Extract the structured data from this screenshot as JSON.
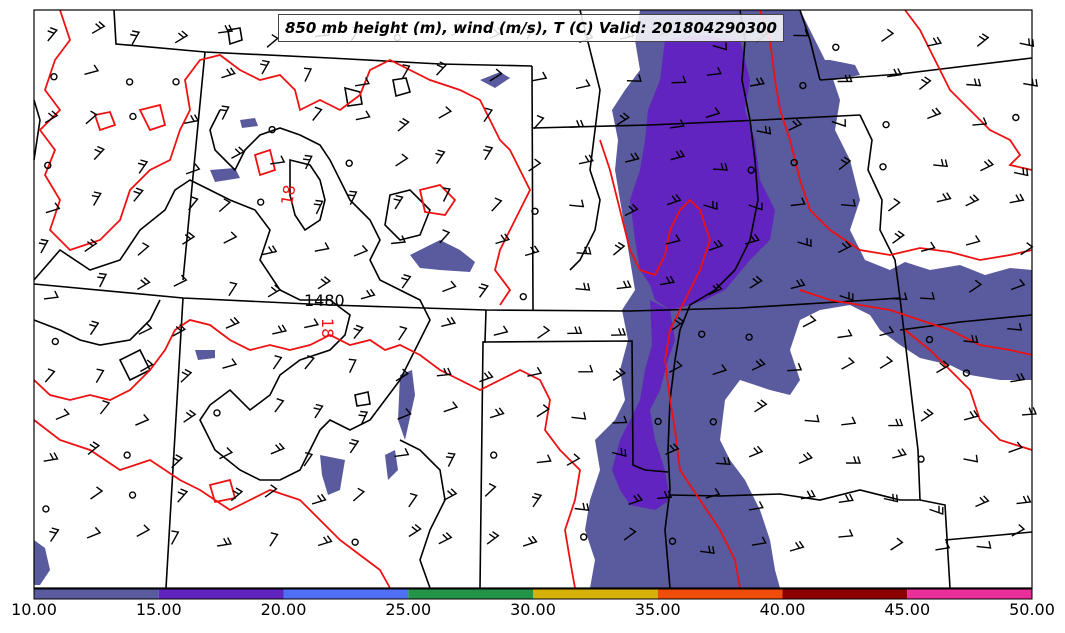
{
  "title": "850 mb height (m), wind (m/s), T (C) Valid: 201804290300",
  "contour_labels": {
    "height": "1480",
    "temp_a": "18",
    "temp_b": "18"
  },
  "colorbar": {
    "ticks": [
      "10.00",
      "15.00",
      "20.00",
      "25.00",
      "30.00",
      "35.00",
      "40.00",
      "45.00",
      "50.00"
    ],
    "colors": [
      "#5a5a9e",
      "#6124be",
      "#4f6ff5",
      "#249448",
      "#d6b10a",
      "#f04c0a",
      "#8c0000",
      "#ea2e9a"
    ]
  },
  "shading_colors": {
    "light": "#5a5a9e",
    "dark": "#6124be"
  }
}
